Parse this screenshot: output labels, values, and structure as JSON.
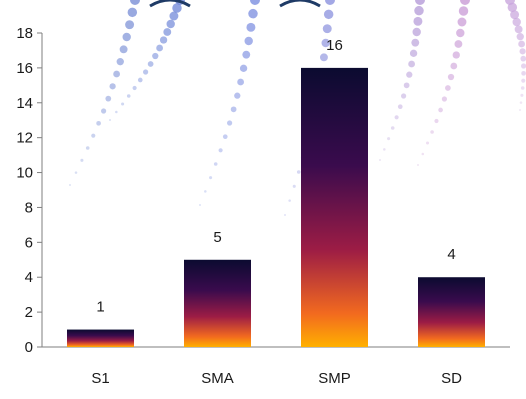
{
  "chart_data": {
    "type": "bar",
    "title": "",
    "xlabel": "",
    "ylabel": "",
    "categories": [
      "S1",
      "SMA",
      "SMP",
      "SD"
    ],
    "values": [
      1,
      5,
      16,
      4
    ],
    "data_labels": [
      "1",
      "5",
      "16",
      "4"
    ],
    "ylim": [
      0,
      18
    ],
    "yticks": [
      0,
      2,
      4,
      6,
      8,
      10,
      12,
      14,
      16,
      18
    ],
    "ytick_labels": [
      "0",
      "2",
      "4",
      "6",
      "8",
      "10",
      "12",
      "14",
      "16",
      "18"
    ],
    "grid": false,
    "legend": "none",
    "bar_gradient": [
      "#ffb000",
      "#f26a1f",
      "#9c1c45",
      "#3a0b4d",
      "#0b0b30"
    ],
    "axis_color": "#7f7f7f",
    "background_decoration": "dotted-arc-pattern"
  }
}
